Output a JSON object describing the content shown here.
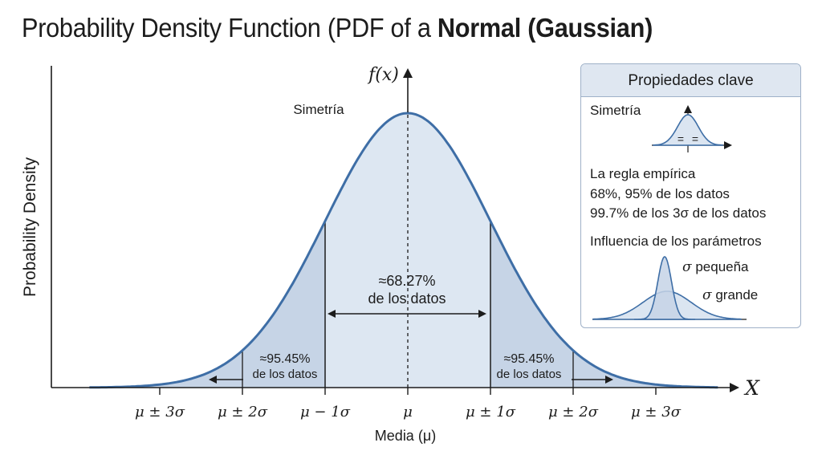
{
  "title": {
    "prefix": "Probability Density Function (PDF of a ",
    "bold": "Normal (Gaussian)"
  },
  "chart_data": {
    "type": "area",
    "title": "Probability Density Function (PDF of a Normal (Gaussian)",
    "ylabel": "Probability Density",
    "xlabel": "Media (μ)",
    "y_axis_label": "f(x)",
    "x_axis_label": "X",
    "x_range_sigma": [
      -3.85,
      3.75
    ],
    "mean": 0,
    "sd": 1,
    "ticks": [
      {
        "sigma": -3,
        "label": "μ ± 3σ"
      },
      {
        "sigma": -2,
        "label": "μ ± 2σ"
      },
      {
        "sigma": -1,
        "label": "μ − 1σ"
      },
      {
        "sigma": 0,
        "label": "μ"
      },
      {
        "sigma": 1,
        "label": "μ ± 1σ"
      },
      {
        "sigma": 2,
        "label": "μ ± 2σ"
      },
      {
        "sigma": 3,
        "label": "μ ± 3σ"
      }
    ],
    "shaded_regions": [
      {
        "from_sigma": -1,
        "to_sigma": 1,
        "label_line1": "≈68.27%",
        "label_line2": "de los datos",
        "color": "#dde7f2"
      },
      {
        "from_sigma": -2,
        "to_sigma": -1,
        "label_line1": "≈95.45%",
        "label_line2": "de los datos",
        "color": "#c6d4e6"
      },
      {
        "from_sigma": 1,
        "to_sigma": 2,
        "label_line1": "≈95.45%",
        "label_line2": "de los datos",
        "color": "#c6d4e6"
      }
    ],
    "annotations": {
      "symmetry": "Simetría"
    }
  },
  "panel": {
    "header": "Propiedades clave",
    "symmetry_label": "Simetría",
    "equal_sign": "=",
    "empirical_title": "La regla empírica",
    "empirical_line1": "68%,  95% de los datos",
    "empirical_line2": "99.7% de los 3σ de los datos",
    "params_title": "Influencia de los parámetros",
    "sigma_symbol": "σ",
    "small_sigma": " pequeña",
    "large_sigma": " grande"
  },
  "colors": {
    "curve": "#3e6ea6",
    "fill_center": "#dde7f2",
    "fill_tails": "#c6d4e6",
    "axis": "#1c1c1c",
    "panel_header": "#dfe7f1",
    "panel_border": "#9fb1c8"
  }
}
